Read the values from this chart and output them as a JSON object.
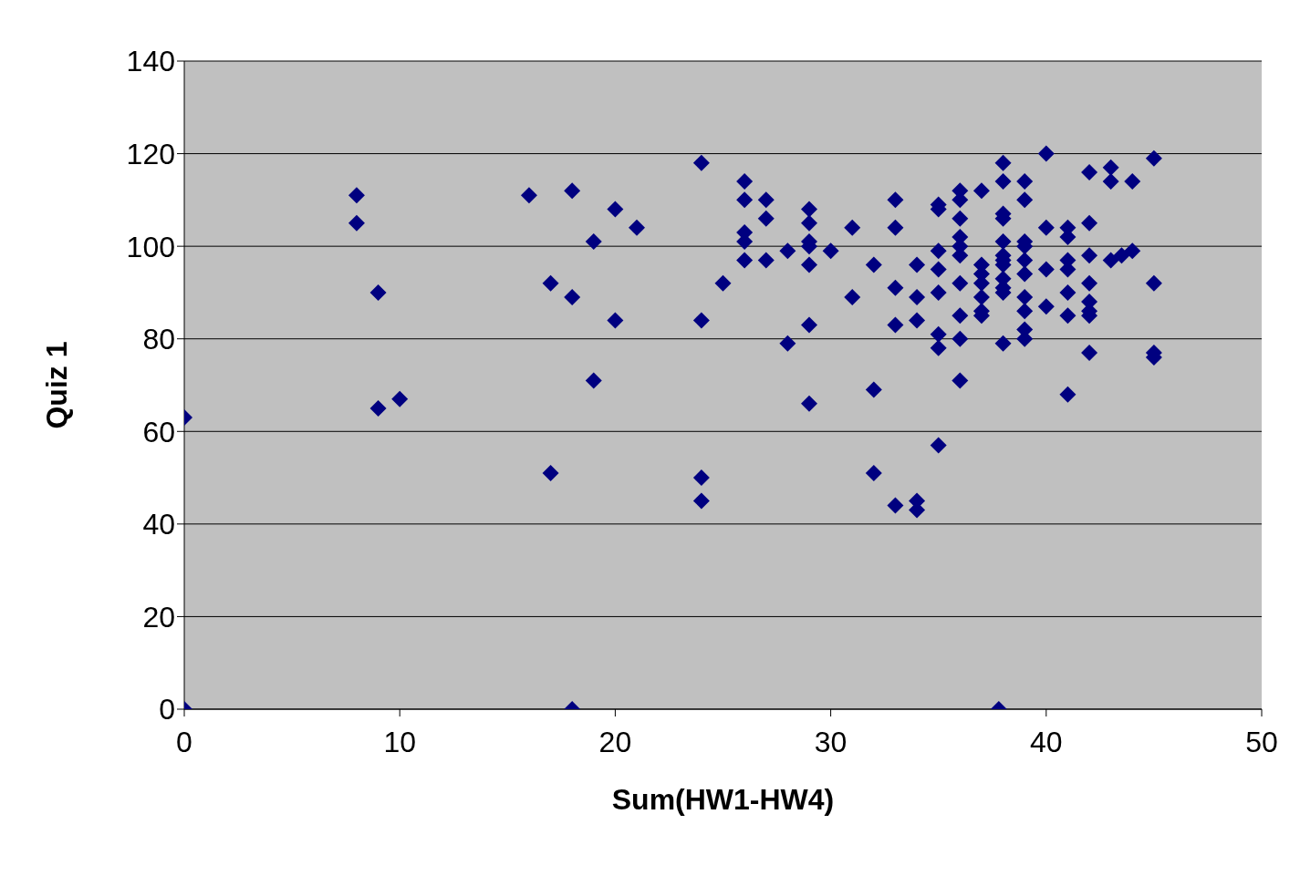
{
  "chart_data": {
    "type": "scatter",
    "xlabel": "Sum(HW1-HW4)",
    "ylabel": "Quiz 1",
    "xlim": [
      0,
      50
    ],
    "xticks": [
      0,
      10,
      20,
      30,
      40,
      50
    ],
    "ylim": [
      0,
      140
    ],
    "yticks": [
      0,
      20,
      40,
      60,
      80,
      100,
      120,
      140
    ],
    "grid": "y",
    "marker": "diamond",
    "series": [
      {
        "color": "#000080",
        "x": [
          0,
          0,
          8,
          8,
          9,
          9,
          10,
          16,
          17,
          17,
          18,
          18,
          18,
          19,
          19,
          20,
          20,
          21,
          24,
          24,
          24,
          24,
          25,
          26,
          26,
          26,
          26,
          26,
          27,
          27,
          27,
          28,
          28,
          29,
          29,
          29,
          29,
          29,
          29,
          29,
          30,
          31,
          31,
          32,
          32,
          32,
          33,
          33,
          33,
          33,
          33,
          34,
          34,
          34,
          34,
          34,
          35,
          35,
          35,
          35,
          35,
          35,
          35,
          35,
          36,
          36,
          36,
          36,
          36,
          36,
          36,
          36,
          36,
          36,
          37,
          37,
          37,
          37,
          37,
          37,
          37,
          38,
          38,
          38,
          38,
          38,
          38,
          38,
          38,
          38,
          38,
          38,
          38,
          37.8,
          39,
          39,
          39,
          39,
          39,
          39,
          39,
          39,
          39,
          39,
          40,
          40,
          40,
          40,
          41,
          41,
          41,
          41,
          41,
          41,
          41,
          42,
          42,
          42,
          42,
          42,
          42,
          42,
          42,
          43,
          43,
          43,
          43.5,
          44,
          44,
          45,
          45,
          45,
          45
        ],
        "values": [
          63,
          0,
          111,
          105,
          90,
          65,
          67,
          111,
          92,
          51,
          112,
          89,
          0,
          101,
          71,
          108,
          84,
          104,
          118,
          84,
          50,
          45,
          92,
          114,
          110,
          103,
          101,
          97,
          110,
          106,
          97,
          99,
          79,
          108,
          105,
          101,
          100,
          96,
          83,
          66,
          99,
          104,
          89,
          96,
          69,
          51,
          110,
          104,
          91,
          83,
          44,
          96,
          89,
          84,
          45,
          43,
          109,
          108,
          99,
          95,
          90,
          81,
          78,
          57,
          112,
          110,
          106,
          102,
          100,
          98,
          92,
          85,
          80,
          71,
          112,
          96,
          94,
          92,
          89,
          86,
          85,
          118,
          114,
          107,
          106,
          101,
          98,
          97,
          96,
          93,
          91,
          90,
          79,
          0,
          114,
          110,
          101,
          100,
          97,
          94,
          89,
          86,
          82,
          80,
          120,
          104,
          95,
          87,
          104,
          102,
          97,
          95,
          90,
          85,
          68,
          116,
          105,
          98,
          92,
          88,
          86,
          85,
          77,
          117,
          114,
          97,
          98,
          114,
          99,
          119,
          92,
          77,
          76
        ]
      }
    ]
  }
}
